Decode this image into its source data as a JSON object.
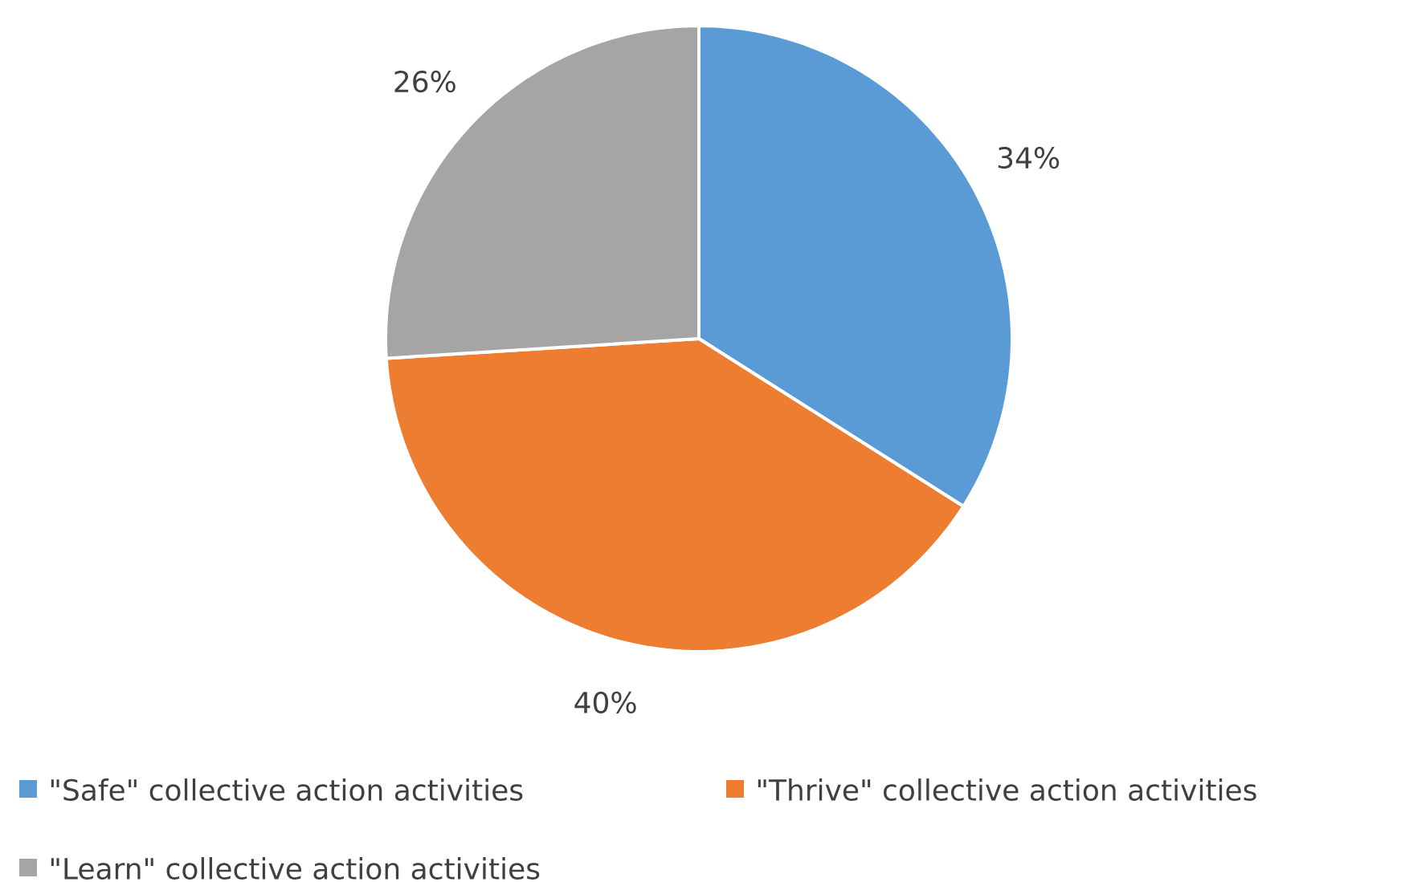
{
  "chart_data": {
    "type": "pie",
    "categories": [
      "\"Safe\" collective action activities",
      "\"Thrive\" collective action activities",
      "\"Learn\" collective action activities"
    ],
    "values": [
      34,
      40,
      26
    ],
    "colors": [
      "#5b9bd5",
      "#ed7d31",
      "#a5a5a5"
    ],
    "value_labels": [
      "34%",
      "40%",
      "26%"
    ],
    "legend": "bottom"
  }
}
